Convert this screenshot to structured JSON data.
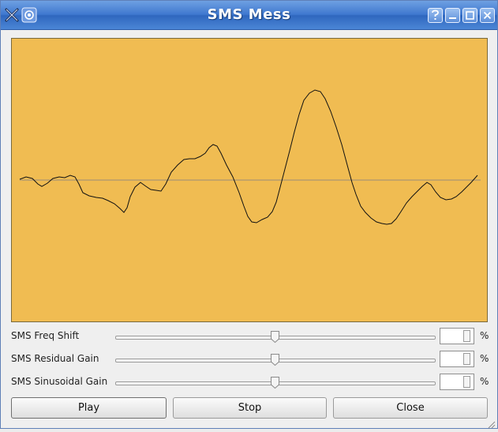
{
  "window": {
    "title": "SMS Mess"
  },
  "sliders": [
    {
      "label": "SMS Freq Shift",
      "unit": "%",
      "position": 0.5
    },
    {
      "label": "SMS Residual Gain",
      "unit": "%",
      "position": 0.5
    },
    {
      "label": "SMS Sinusoidal Gain",
      "unit": "%",
      "position": 0.5
    }
  ],
  "buttons": {
    "play": "Play",
    "stop": "Stop",
    "close": "Close"
  },
  "colors": {
    "plot_background": "#f0bc52",
    "waveform": "#111111",
    "baseline": "#9a8d78",
    "titlebar": "#3f78cf"
  }
}
